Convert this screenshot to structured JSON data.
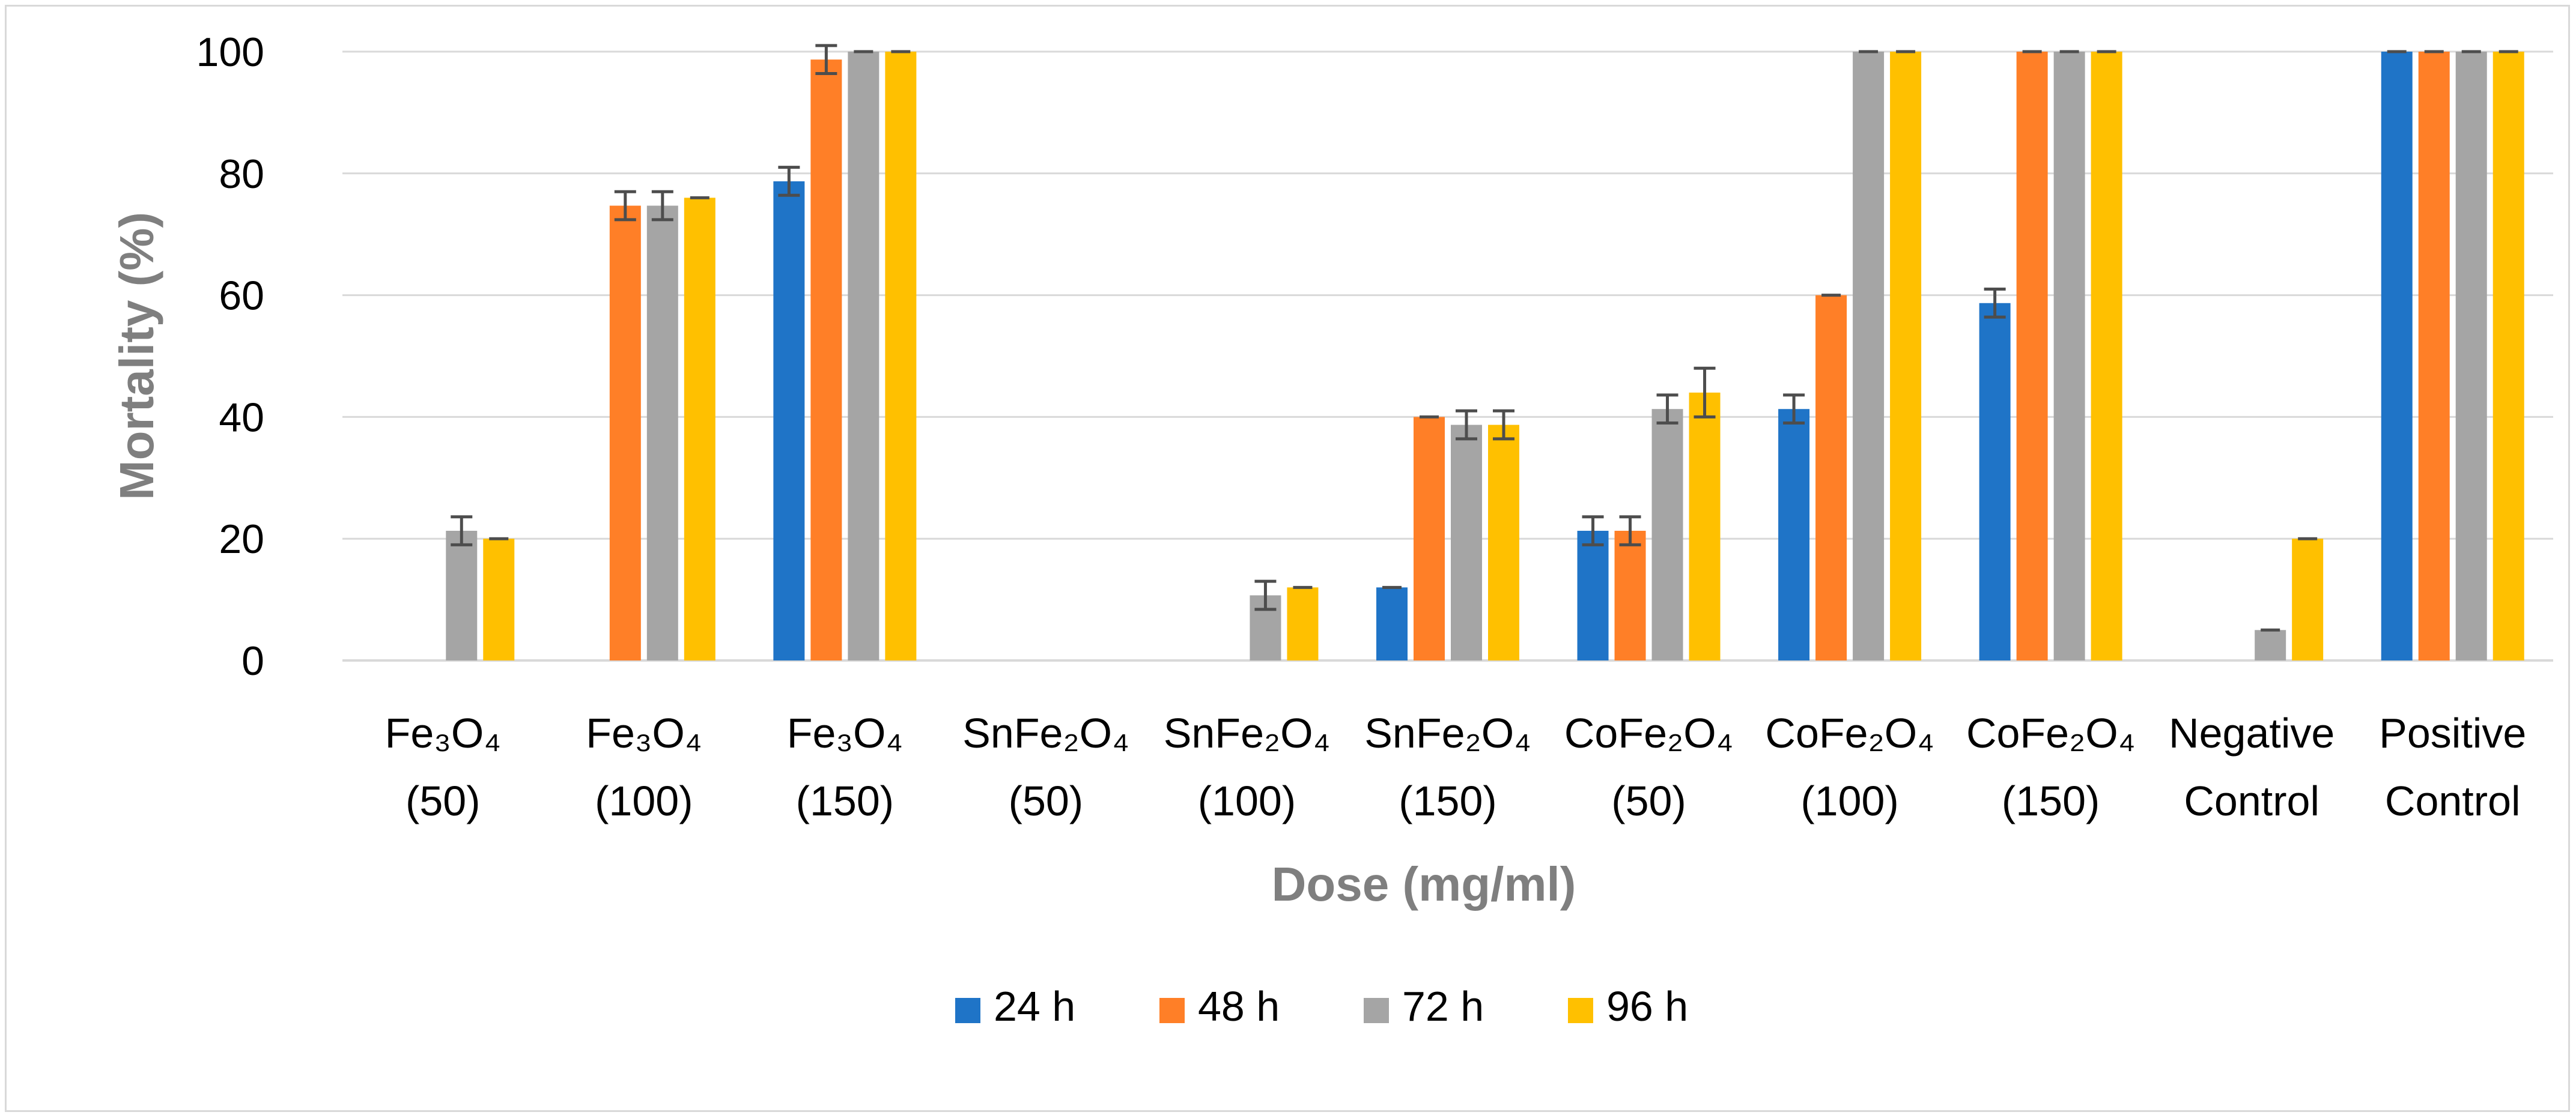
{
  "chart_data": {
    "type": "bar",
    "title": "",
    "xlabel": "Dose (mg/ml)",
    "ylabel": "Mortality (%)",
    "ylim": [
      0,
      100
    ],
    "yticks": [
      0,
      20,
      40,
      60,
      80,
      100
    ],
    "grid": true,
    "legend_position": "bottom",
    "categories": [
      {
        "line1": "Fe₃O₄",
        "line2": "(50)"
      },
      {
        "line1": "Fe₃O₄",
        "line2": "(100)"
      },
      {
        "line1": "Fe₃O₄",
        "line2": "(150)"
      },
      {
        "line1": "SnFe₂O₄",
        "line2": "(50)"
      },
      {
        "line1": "SnFe₂O₄",
        "line2": "(100)"
      },
      {
        "line1": "SnFe₂O₄",
        "line2": "(150)"
      },
      {
        "line1": "CoFe₂O₄",
        "line2": "(50)"
      },
      {
        "line1": "CoFe₂O₄",
        "line2": "(100)"
      },
      {
        "line1": "CoFe₂O₄",
        "line2": "(150)"
      },
      {
        "line1": "Negative",
        "line2": "Control"
      },
      {
        "line1": "Positive",
        "line2": "Control"
      }
    ],
    "series": [
      {
        "name": "24 h",
        "color": "#1f74c7",
        "values": [
          0,
          0,
          78.7,
          0,
          0,
          12,
          21.3,
          41.3,
          58.7,
          0,
          100
        ],
        "errors": [
          0,
          0,
          2.3,
          0,
          0,
          0,
          2.3,
          2.3,
          2.3,
          0,
          0
        ]
      },
      {
        "name": "48 h",
        "color": "#ff7f27",
        "values": [
          0,
          74.7,
          98.7,
          0,
          0,
          40,
          21.3,
          60,
          100,
          0,
          100
        ],
        "errors": [
          0,
          2.3,
          2.3,
          0,
          0,
          0,
          2.3,
          0,
          0,
          0,
          0
        ]
      },
      {
        "name": "72 h",
        "color": "#a5a5a5",
        "values": [
          21.3,
          74.7,
          100,
          0,
          10.7,
          38.7,
          41.3,
          100,
          100,
          5,
          100
        ],
        "errors": [
          2.3,
          2.3,
          0,
          0,
          2.3,
          2.3,
          2.3,
          0,
          0,
          0,
          0
        ]
      },
      {
        "name": "96 h",
        "color": "#ffc000",
        "values": [
          20,
          76,
          100,
          0,
          12,
          38.7,
          44,
          100,
          100,
          20,
          100
        ],
        "errors": [
          0,
          0,
          0,
          0,
          0,
          2.3,
          4,
          0,
          0,
          0,
          0
        ]
      }
    ]
  }
}
